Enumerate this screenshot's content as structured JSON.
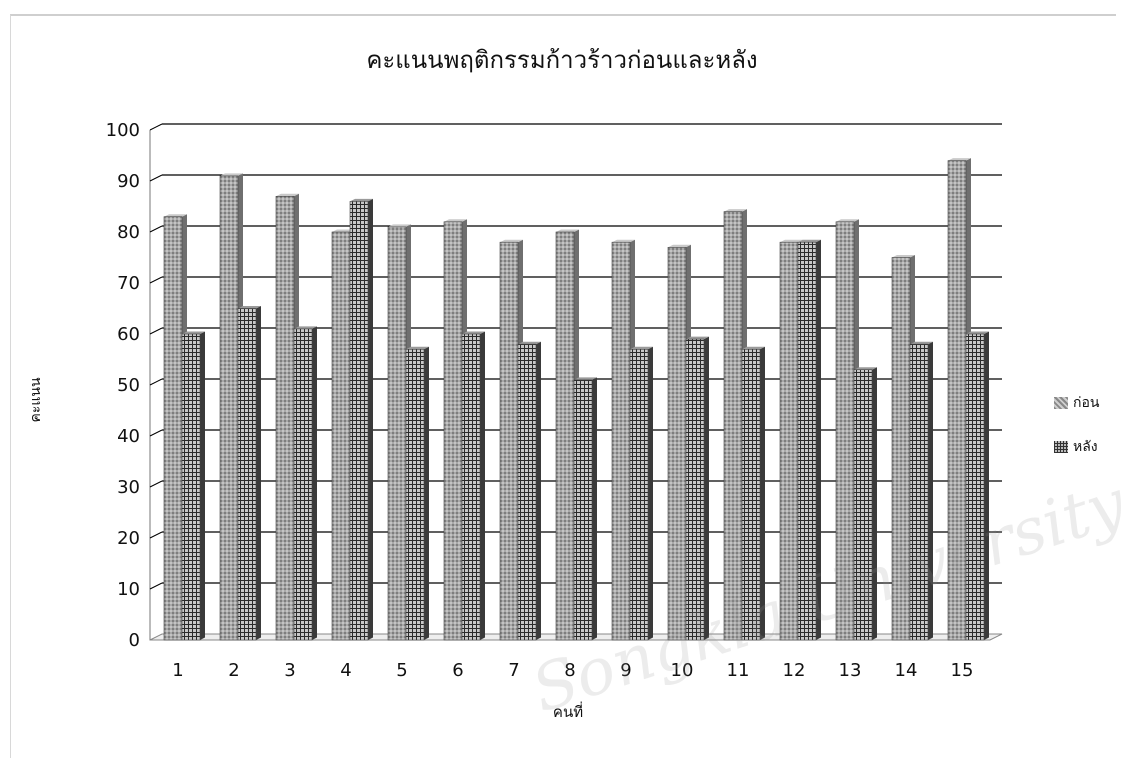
{
  "chart_data": {
    "type": "bar",
    "title": "คะแนนพฤติกรรมก้าวร้าวก่อนและหลัง",
    "xlabel": "คนที่",
    "ylabel": "คะแนน",
    "categories": [
      "1",
      "2",
      "3",
      "4",
      "5",
      "6",
      "7",
      "8",
      "9",
      "10",
      "11",
      "12",
      "13",
      "14",
      "15"
    ],
    "series": [
      {
        "name": "ก่อน",
        "values": [
          83,
          91,
          87,
          80,
          81,
          82,
          78,
          80,
          78,
          77,
          84,
          78,
          82,
          75,
          94
        ]
      },
      {
        "name": "หลัง",
        "values": [
          60,
          65,
          61,
          86,
          57,
          60,
          58,
          51,
          57,
          59,
          57,
          78,
          53,
          58,
          60
        ]
      }
    ],
    "ylim": [
      0,
      100
    ],
    "yticks": [
      "0",
      "10",
      "20",
      "30",
      "40",
      "50",
      "60",
      "70",
      "80",
      "90",
      "100"
    ],
    "grid": true,
    "legend_position": "right",
    "style": "3d-clustered-column",
    "colors": {
      "before": "#9a9a9a",
      "after": "#5a5a5a",
      "gridline": "#000000"
    }
  },
  "watermark": "Songkla University"
}
